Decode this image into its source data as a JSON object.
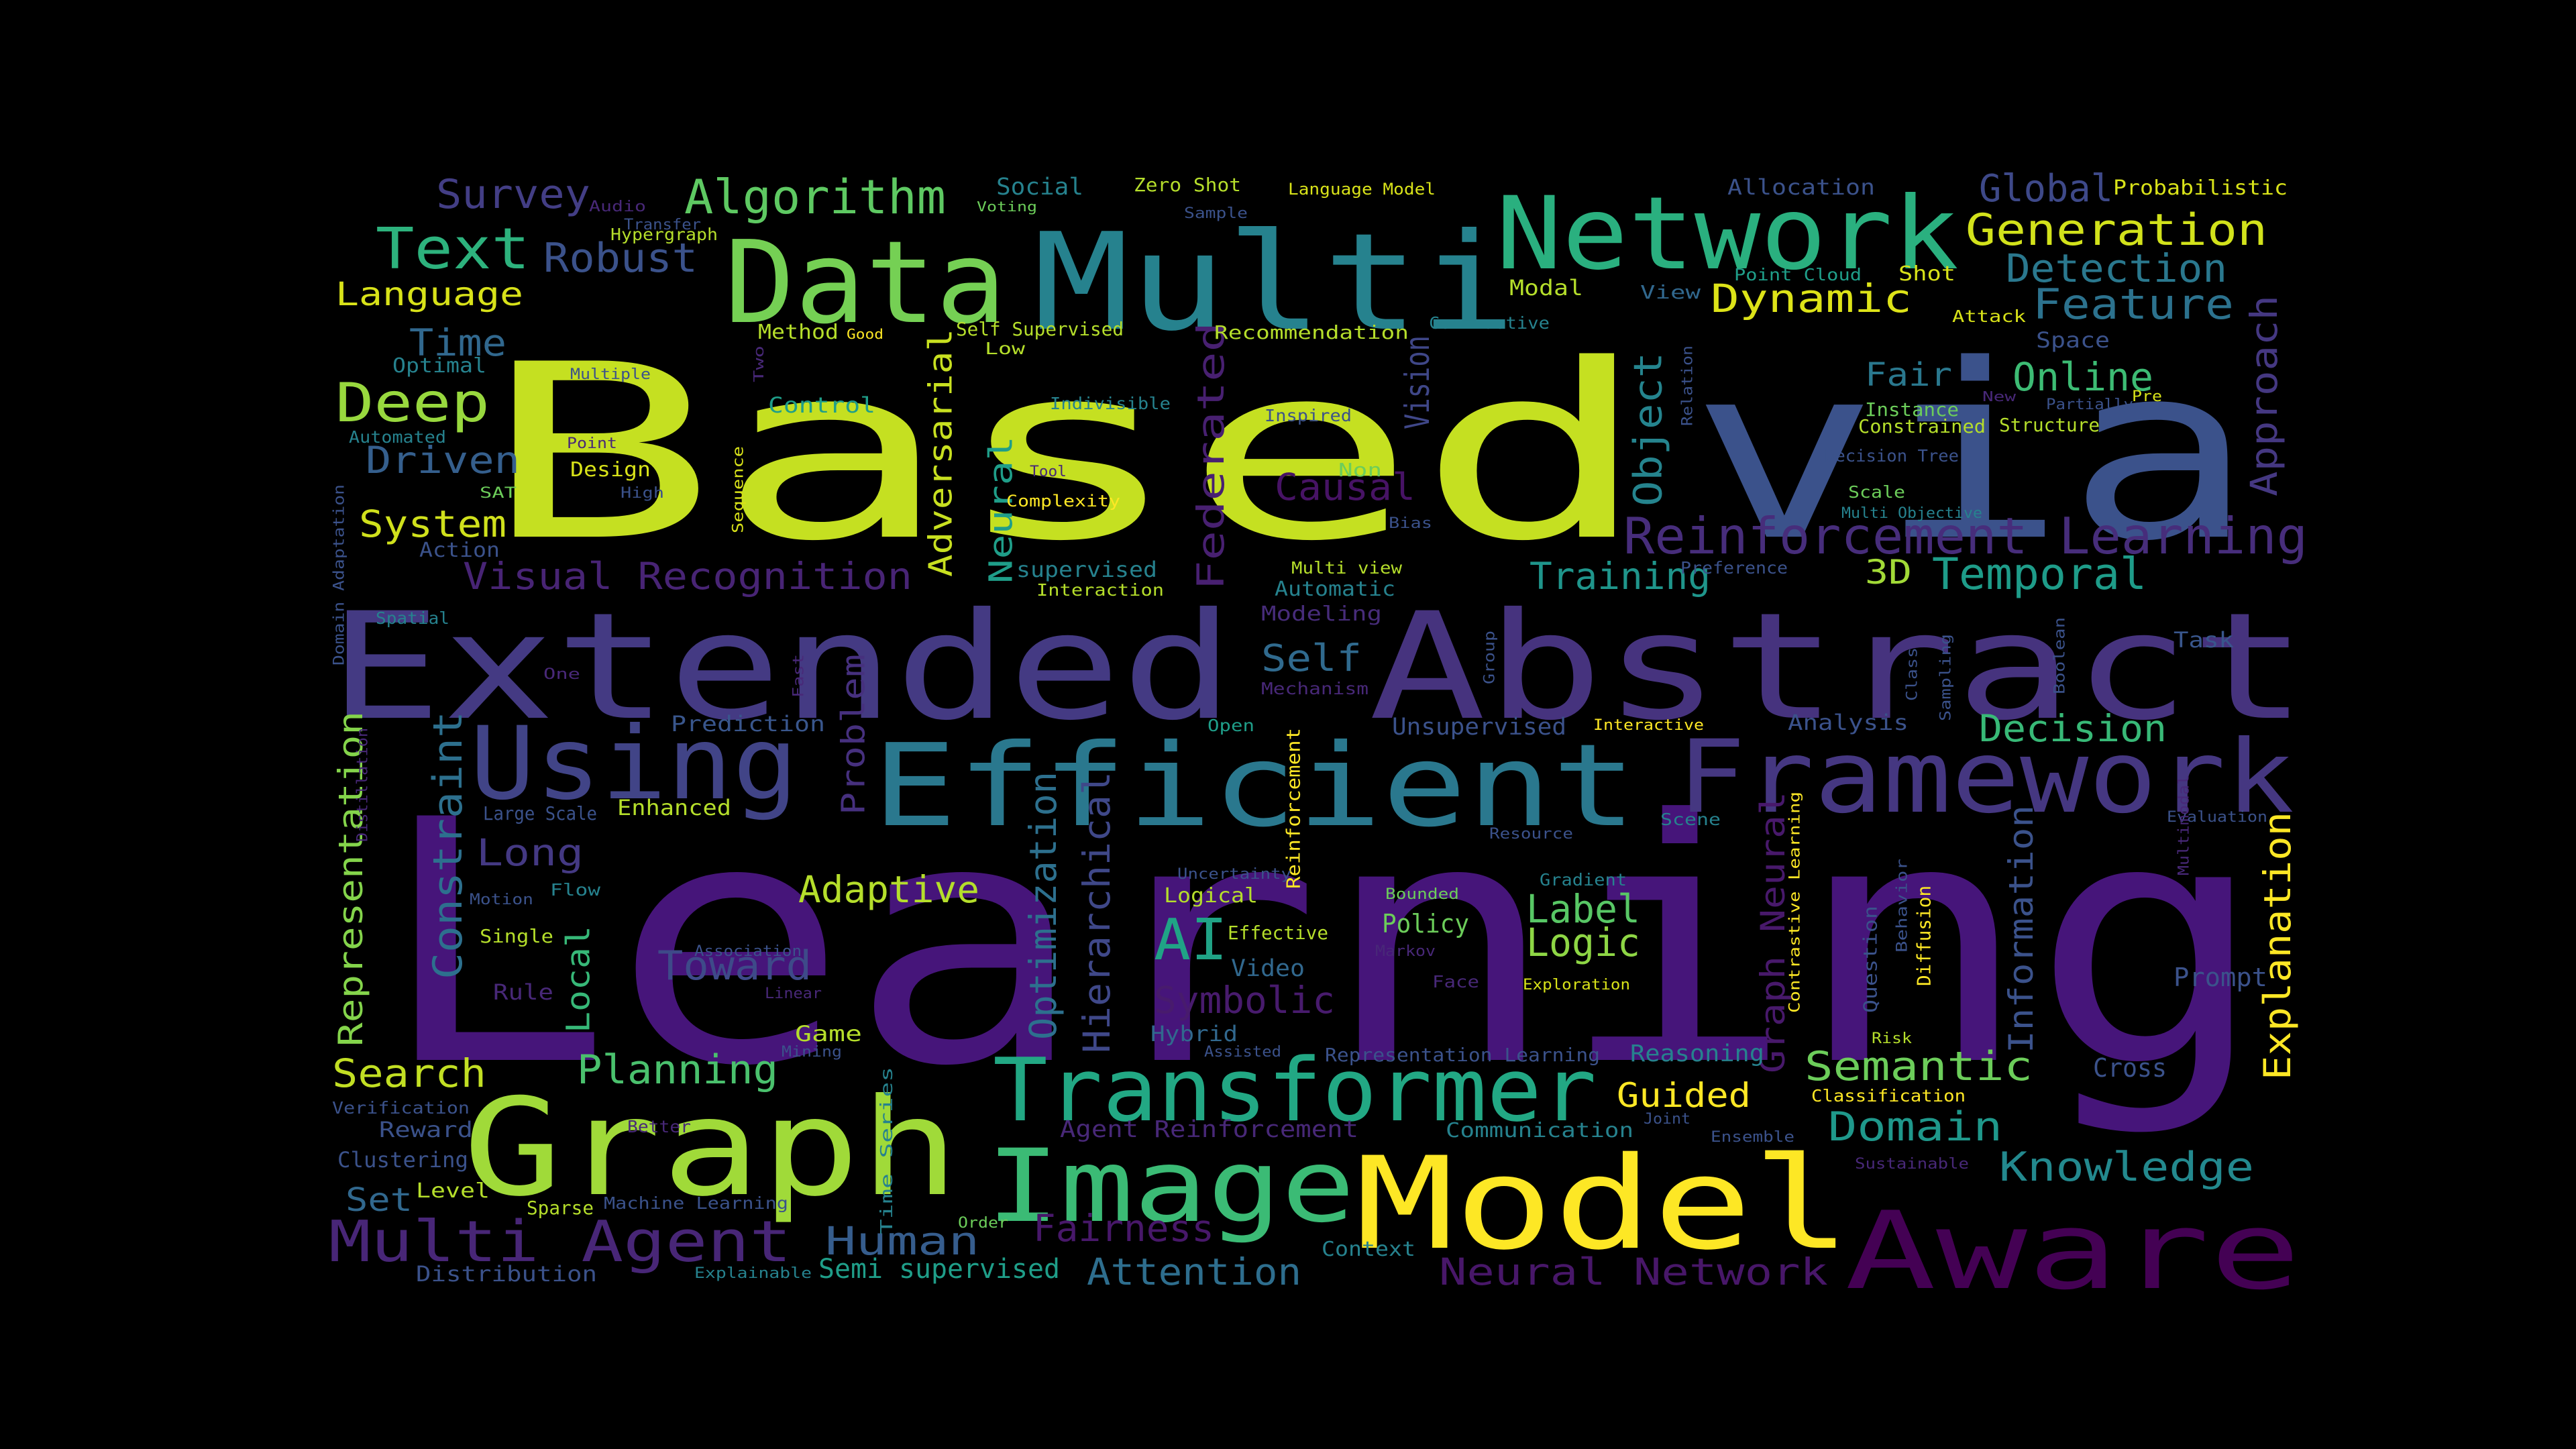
{
  "word_cloud": {
    "background_color": "#000000",
    "colormap": "viridis",
    "words": [
      {
        "text": "Learning",
        "color": "#46157a"
      },
      {
        "text": "Based",
        "color": "#c5e021"
      },
      {
        "text": "via",
        "color": "#3b528b"
      },
      {
        "text": "Extended",
        "color": "#443a83"
      },
      {
        "text": "Abstract",
        "color": "#46337e"
      },
      {
        "text": "Multi",
        "color": "#26828e"
      },
      {
        "text": "Network",
        "color": "#2ab07f"
      },
      {
        "text": "Data",
        "color": "#75d054"
      },
      {
        "text": "Efficient",
        "color": "#2a788e"
      },
      {
        "text": "Framework",
        "color": "#453781"
      },
      {
        "text": "Using",
        "color": "#414487"
      },
      {
        "text": "Graph",
        "color": "#a0da39"
      },
      {
        "text": "Model",
        "color": "#fde725"
      },
      {
        "text": "Aware",
        "color": "#440154"
      },
      {
        "text": "Image",
        "color": "#3bbb75"
      },
      {
        "text": "Transformer",
        "color": "#22a884"
      },
      {
        "text": "Reinforcement Learning",
        "color": "#472d7b"
      },
      {
        "text": "Multi Agent",
        "color": "#482677"
      },
      {
        "text": "Text",
        "color": "#2db27d"
      },
      {
        "text": "Algorithm",
        "color": "#5ec962"
      },
      {
        "text": "Generation",
        "color": "#d2e21b"
      },
      {
        "text": "Detection",
        "color": "#2a788e"
      },
      {
        "text": "Feature",
        "color": "#2c728e"
      },
      {
        "text": "Dynamic",
        "color": "#dde318"
      },
      {
        "text": "Global",
        "color": "#3e4989"
      },
      {
        "text": "Survey",
        "color": "#433e85"
      },
      {
        "text": "Robust",
        "color": "#3b528b"
      },
      {
        "text": "Language",
        "color": "#d8e219"
      },
      {
        "text": "Deep",
        "color": "#98d83e"
      },
      {
        "text": "Time",
        "color": "#31688e"
      },
      {
        "text": "Driven",
        "color": "#355f8d"
      },
      {
        "text": "System",
        "color": "#d0e11c"
      },
      {
        "text": "Visual Recognition",
        "color": "#482475"
      },
      {
        "text": "Adversarial",
        "color": "#c8e020"
      },
      {
        "text": "Neural",
        "color": "#1f9e89"
      },
      {
        "text": "Federated",
        "color": "#482071"
      },
      {
        "text": "Vision",
        "color": "#3f4788"
      },
      {
        "text": "Object",
        "color": "#25848e"
      },
      {
        "text": "Fair",
        "color": "#2a788e"
      },
      {
        "text": "Online",
        "color": "#3dbc74"
      },
      {
        "text": "Approach",
        "color": "#453882"
      },
      {
        "text": "Causal",
        "color": "#471365"
      },
      {
        "text": "Self",
        "color": "#306a8e"
      },
      {
        "text": "Training",
        "color": "#1f958b"
      },
      {
        "text": "Temporal",
        "color": "#1e9c89"
      },
      {
        "text": "3D",
        "color": "#a2da37"
      },
      {
        "text": "Decision",
        "color": "#38b977"
      },
      {
        "text": "Representation",
        "color": "#84d44b"
      },
      {
        "text": "Constraint",
        "color": "#2d708e"
      },
      {
        "text": "Long",
        "color": "#443983"
      },
      {
        "text": "Problem",
        "color": "#46307e"
      },
      {
        "text": "Optimization",
        "color": "#2d708e"
      },
      {
        "text": "Hierarchical",
        "color": "#3f4889"
      },
      {
        "text": "Adaptive",
        "color": "#b5de2b"
      },
      {
        "text": "AI",
        "color": "#20a386"
      },
      {
        "text": "Label",
        "color": "#58c765"
      },
      {
        "text": "Logic",
        "color": "#8ed645"
      },
      {
        "text": "Toward",
        "color": "#3e4a89"
      },
      {
        "text": "Symbolic",
        "color": "#481b6d"
      },
      {
        "text": "Local",
        "color": "#37b878"
      },
      {
        "text": "Graph Neural",
        "color": "#48196b"
      },
      {
        "text": "Information",
        "color": "#3b528b"
      },
      {
        "text": "Explanation",
        "color": "#fde725"
      },
      {
        "text": "Semantic",
        "color": "#6ccd5a"
      },
      {
        "text": "Domain",
        "color": "#1f988b"
      },
      {
        "text": "Knowledge",
        "color": "#23898e"
      },
      {
        "text": "Planning",
        "color": "#4ac16d"
      },
      {
        "text": "Search",
        "color": "#c2df23"
      },
      {
        "text": "Human",
        "color": "#365d8d"
      },
      {
        "text": "Fairness",
        "color": "#48186a"
      },
      {
        "text": "Attention",
        "color": "#2e6e8e"
      },
      {
        "text": "Neural Network",
        "color": "#481769"
      },
      {
        "text": "Guided",
        "color": "#fde725"
      },
      {
        "text": "Prompt",
        "color": "#3b528b"
      },
      {
        "text": "Cross",
        "color": "#3b528b"
      },
      {
        "text": "Set",
        "color": "#31688e"
      },
      {
        "text": "Semi supervised",
        "color": "#1f9e89"
      },
      {
        "text": "Task",
        "color": "#39568c"
      },
      {
        "text": "Analysis",
        "color": "#3b528b"
      },
      {
        "text": "Unsupervised",
        "color": "#3b528b"
      },
      {
        "text": "Prediction",
        "color": "#39568c"
      },
      {
        "text": "Video",
        "color": "#31688e"
      },
      {
        "text": "Policy",
        "color": "#6ccd5a"
      },
      {
        "text": "Reasoning",
        "color": "#26828e"
      },
      {
        "text": "Hybrid",
        "color": "#31688e"
      },
      {
        "text": "Diffusion",
        "color": "#fde725"
      },
      {
        "text": "Question",
        "color": "#3b528b"
      },
      {
        "text": "Reinforcement",
        "color": "#fde725"
      },
      {
        "text": "Social",
        "color": "#26828e"
      },
      {
        "text": "Zero Shot",
        "color": "#b5de2b"
      },
      {
        "text": "Language Model",
        "color": "#d8e219"
      },
      {
        "text": "Allocation",
        "color": "#3b528b"
      },
      {
        "text": "Probabilistic",
        "color": "#d8e219"
      },
      {
        "text": "Point Cloud",
        "color": "#1f9e89"
      },
      {
        "text": "Shot",
        "color": "#d8e219"
      },
      {
        "text": "Modal",
        "color": "#b5de2b"
      },
      {
        "text": "View",
        "color": "#31688e"
      },
      {
        "text": "Contrastive",
        "color": "#26828e"
      },
      {
        "text": "Recommendation",
        "color": "#b5de2b"
      },
      {
        "text": "Self Supervised",
        "color": "#b5de2b"
      },
      {
        "text": "Method",
        "color": "#b5de2b"
      },
      {
        "text": "Good",
        "color": "#fde725"
      },
      {
        "text": "Low",
        "color": "#b5de2b"
      },
      {
        "text": "Indivisible",
        "color": "#26828e"
      },
      {
        "text": "Inspired",
        "color": "#3b528b"
      },
      {
        "text": "Non",
        "color": "#6ccd5a"
      },
      {
        "text": "Tool",
        "color": "#482878"
      },
      {
        "text": "Complexity",
        "color": "#fde725"
      },
      {
        "text": "Bias",
        "color": "#3b528b"
      },
      {
        "text": "Multi view",
        "color": "#b5de2b"
      },
      {
        "text": "Automatic",
        "color": "#26828e"
      },
      {
        "text": "Modeling",
        "color": "#472c7a"
      },
      {
        "text": "Mechanism",
        "color": "#482878"
      },
      {
        "text": "supervised",
        "color": "#26828e"
      },
      {
        "text": "Interaction",
        "color": "#b5de2b"
      },
      {
        "text": "Control",
        "color": "#1f9e89"
      },
      {
        "text": "Sequence",
        "color": "#d8e219"
      },
      {
        "text": "Two",
        "color": "#482878"
      },
      {
        "text": "Design",
        "color": "#d8e219"
      },
      {
        "text": "Multiple",
        "color": "#3b528b"
      },
      {
        "text": "Optimal",
        "color": "#26828e"
      },
      {
        "text": "Automated",
        "color": "#26828e"
      },
      {
        "text": "Point",
        "color": "#482878"
      },
      {
        "text": "High",
        "color": "#3b528b"
      },
      {
        "text": "SAT",
        "color": "#6ccd5a"
      },
      {
        "text": "Action",
        "color": "#3b528b"
      },
      {
        "text": "Domain Adaptation",
        "color": "#3b528b"
      },
      {
        "text": "Spatial",
        "color": "#26828e"
      },
      {
        "text": "One",
        "color": "#482878"
      },
      {
        "text": "Audio",
        "color": "#482878"
      },
      {
        "text": "Transfer",
        "color": "#3b528b"
      },
      {
        "text": "Hypergraph",
        "color": "#b5de2b"
      },
      {
        "text": "Voting",
        "color": "#6ccd5a"
      },
      {
        "text": "Sample",
        "color": "#3b528b"
      },
      {
        "text": "Relation",
        "color": "#3b528b"
      },
      {
        "text": "Instance",
        "color": "#6ccd5a"
      },
      {
        "text": "Constrained",
        "color": "#b5de2b"
      },
      {
        "text": "Partially",
        "color": "#3b528b"
      },
      {
        "text": "Structure",
        "color": "#b5de2b"
      },
      {
        "text": "New",
        "color": "#482878"
      },
      {
        "text": "Pre",
        "color": "#d8e219"
      },
      {
        "text": "Space",
        "color": "#3b528b"
      },
      {
        "text": "Attack",
        "color": "#d8e219"
      },
      {
        "text": "Decision Tree",
        "color": "#3b528b"
      },
      {
        "text": "Scale",
        "color": "#6ccd5a"
      },
      {
        "text": "Multi Objective",
        "color": "#26828e"
      },
      {
        "text": "Preference",
        "color": "#3b528b"
      },
      {
        "text": "Group",
        "color": "#3b528b"
      },
      {
        "text": "Class",
        "color": "#3b528b"
      },
      {
        "text": "Sampling",
        "color": "#3b528b"
      },
      {
        "text": "Boolean",
        "color": "#3b528b"
      },
      {
        "text": "Interactive",
        "color": "#fde725"
      },
      {
        "text": "Open",
        "color": "#1f9e89"
      },
      {
        "text": "Scene",
        "color": "#26828e"
      },
      {
        "text": "Resource",
        "color": "#3b528b"
      },
      {
        "text": "Evaluation",
        "color": "#3b528b"
      },
      {
        "text": "Gradient",
        "color": "#26828e"
      },
      {
        "text": "Behavior",
        "color": "#3b528b"
      },
      {
        "text": "Contrastive Learning",
        "color": "#fde725"
      },
      {
        "text": "Uncertainty",
        "color": "#3b528b"
      },
      {
        "text": "Logical",
        "color": "#b5de2b"
      },
      {
        "text": "Effective",
        "color": "#b5de2b"
      },
      {
        "text": "Bounded",
        "color": "#6ccd5a"
      },
      {
        "text": "Markov",
        "color": "#482878"
      },
      {
        "text": "Face",
        "color": "#482878"
      },
      {
        "text": "Exploration",
        "color": "#d8e219"
      },
      {
        "text": "Risk",
        "color": "#b5de2b"
      },
      {
        "text": "Multimodal",
        "color": "#482878"
      },
      {
        "text": "Representation Learning",
        "color": "#3b528b"
      },
      {
        "text": "Classification",
        "color": "#fde725"
      },
      {
        "text": "Communication",
        "color": "#26828e"
      },
      {
        "text": "Joint",
        "color": "#3b528b"
      },
      {
        "text": "Ensemble",
        "color": "#3b528b"
      },
      {
        "text": "Sustainable",
        "color": "#482878"
      },
      {
        "text": "Agent Reinforcement",
        "color": "#482878"
      },
      {
        "text": "Assisted",
        "color": "#3b528b"
      },
      {
        "text": "Context",
        "color": "#26828e"
      },
      {
        "text": "Order",
        "color": "#6ccd5a"
      },
      {
        "text": "Time Series",
        "color": "#26828e"
      },
      {
        "text": "Game",
        "color": "#b5de2b"
      },
      {
        "text": "Mining",
        "color": "#3b528b"
      },
      {
        "text": "Linear",
        "color": "#482878"
      },
      {
        "text": "Association",
        "color": "#3b528b"
      },
      {
        "text": "Single",
        "color": "#b5de2b"
      },
      {
        "text": "Flow",
        "color": "#26828e"
      },
      {
        "text": "Motion",
        "color": "#3b528b"
      },
      {
        "text": "Rule",
        "color": "#482878"
      },
      {
        "text": "Reward",
        "color": "#3b528b"
      },
      {
        "text": "Verification",
        "color": "#3b528b"
      },
      {
        "text": "Better",
        "color": "#482878"
      },
      {
        "text": "Clustering",
        "color": "#3b528b"
      },
      {
        "text": "Level",
        "color": "#b5de2b"
      },
      {
        "text": "Machine Learning",
        "color": "#3b528b"
      },
      {
        "text": "Sparse",
        "color": "#b5de2b"
      },
      {
        "text": "Distribution",
        "color": "#3b528b"
      },
      {
        "text": "Explainable",
        "color": "#26828e"
      },
      {
        "text": "Distillation",
        "color": "#482878"
      },
      {
        "text": "Large Scale",
        "color": "#3b528b"
      },
      {
        "text": "Enhanced",
        "color": "#b5de2b"
      },
      {
        "text": "Fast",
        "color": "#482878"
      }
    ]
  }
}
